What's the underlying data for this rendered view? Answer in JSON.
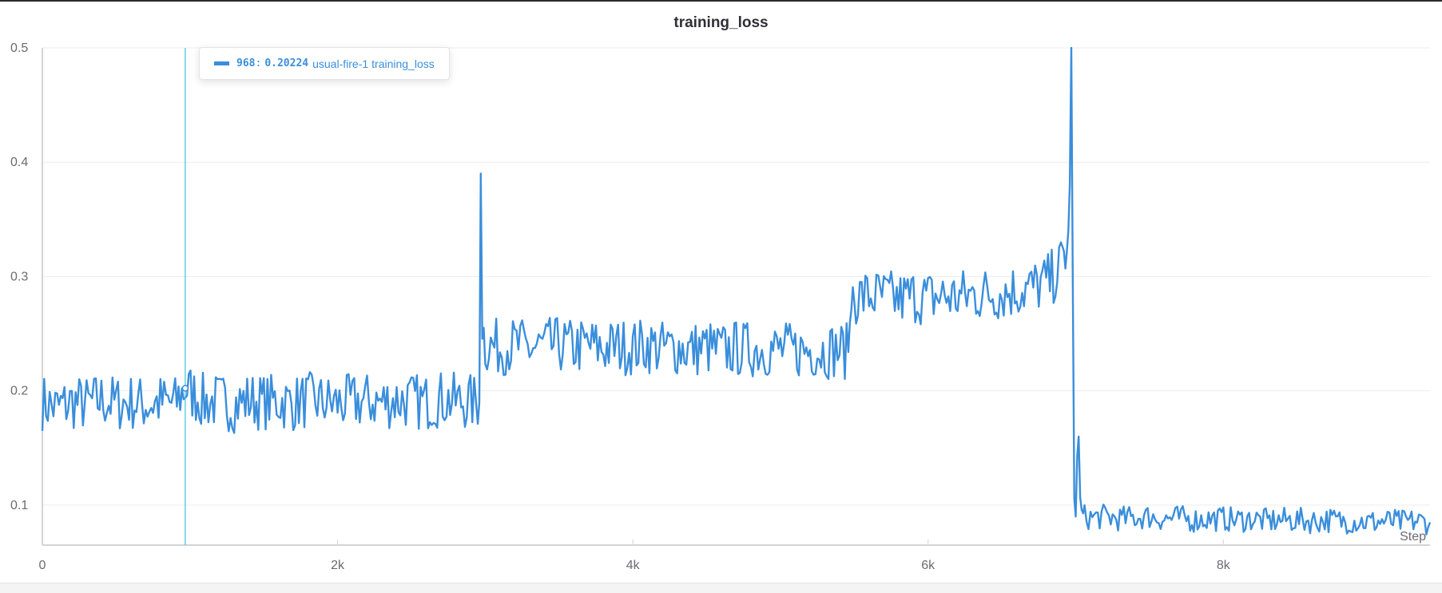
{
  "chart_data": {
    "type": "line",
    "title": "training_loss",
    "xlabel": "Step",
    "ylabel": "",
    "xlim": [
      0,
      9400
    ],
    "ylim": [
      0.065,
      0.5
    ],
    "x_ticks": [
      0,
      2000,
      4000,
      6000,
      8000
    ],
    "x_tick_labels": [
      "0",
      "2k",
      "4k",
      "6k",
      "8k"
    ],
    "y_ticks": [
      0.1,
      0.2,
      0.3,
      0.4,
      0.5
    ],
    "y_tick_labels": [
      "0.1",
      "0.2",
      "0.3",
      "0.4",
      "0.5"
    ],
    "grid": true,
    "series": [
      {
        "name": "usual-fire-1 training_loss",
        "color": "#3a8edb",
        "x": [
          0,
          100,
          200,
          300,
          400,
          500,
          600,
          700,
          800,
          900,
          968,
          1100,
          1200,
          1300,
          1400,
          1500,
          1600,
          1700,
          1800,
          1900,
          2000,
          2100,
          2200,
          2300,
          2400,
          2500,
          2600,
          2700,
          2800,
          2900,
          2950,
          2960,
          2970,
          2980,
          3000,
          3100,
          3200,
          3300,
          3400,
          3500,
          3600,
          3700,
          3800,
          3900,
          4000,
          4100,
          4200,
          4300,
          4400,
          4500,
          4600,
          4700,
          4800,
          4900,
          5000,
          5100,
          5200,
          5300,
          5400,
          5460,
          5480,
          5500,
          5600,
          5700,
          5800,
          5900,
          6000,
          6100,
          6200,
          6300,
          6400,
          6500,
          6600,
          6700,
          6800,
          6850,
          6900,
          6920,
          6940,
          6950,
          6960,
          6970,
          6980,
          6990,
          7000,
          7010,
          7020,
          7030,
          7040,
          7060,
          7100,
          7200,
          7300,
          7400,
          7500,
          7600,
          7700,
          7800,
          7900,
          8000,
          8100,
          8200,
          8300,
          8400,
          8500,
          8600,
          8700,
          8800,
          8900,
          9000,
          9100,
          9200,
          9300,
          9400
        ],
        "y": [
          0.19,
          0.185,
          0.19,
          0.188,
          0.192,
          0.189,
          0.19,
          0.188,
          0.19,
          0.189,
          0.20224,
          0.19,
          0.191,
          0.188,
          0.192,
          0.19,
          0.191,
          0.189,
          0.192,
          0.19,
          0.189,
          0.19,
          0.191,
          0.19,
          0.192,
          0.191,
          0.19,
          0.193,
          0.191,
          0.19,
          0.19,
          0.19,
          0.39,
          0.26,
          0.24,
          0.238,
          0.24,
          0.237,
          0.239,
          0.24,
          0.238,
          0.24,
          0.237,
          0.239,
          0.238,
          0.24,
          0.237,
          0.238,
          0.236,
          0.238,
          0.235,
          0.237,
          0.236,
          0.237,
          0.236,
          0.235,
          0.236,
          0.235,
          0.236,
          0.234,
          0.285,
          0.282,
          0.283,
          0.282,
          0.28,
          0.283,
          0.281,
          0.283,
          0.282,
          0.284,
          0.285,
          0.286,
          0.288,
          0.29,
          0.295,
          0.3,
          0.31,
          0.32,
          0.32,
          0.34,
          0.38,
          0.5,
          0.3,
          0.1,
          0.09,
          0.15,
          0.16,
          0.1,
          0.092,
          0.09,
          0.089,
          0.09,
          0.088,
          0.089,
          0.09,
          0.088,
          0.089,
          0.087,
          0.088,
          0.088,
          0.087,
          0.088,
          0.086,
          0.087,
          0.087,
          0.086,
          0.087,
          0.086,
          0.086,
          0.085,
          0.086,
          0.085,
          0.086,
          0.085
        ]
      }
    ],
    "hover": {
      "step": "968",
      "value": "0.20224",
      "run": "usual-fire-1",
      "metric": "training_loss"
    }
  }
}
